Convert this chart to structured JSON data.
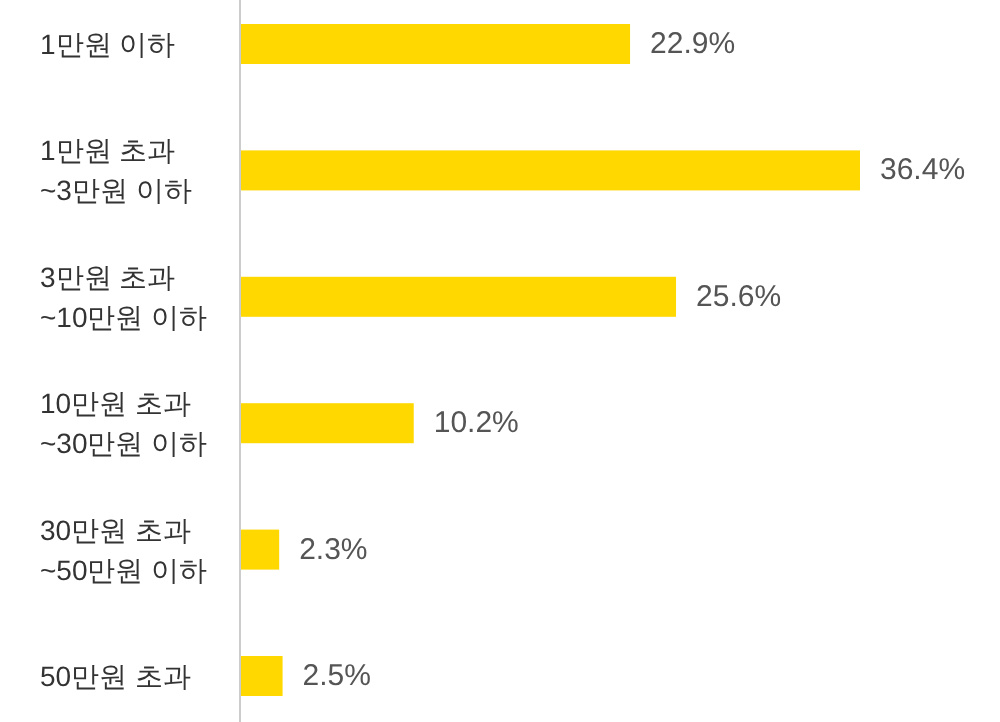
{
  "chart_data": {
    "type": "bar",
    "orientation": "horizontal",
    "categories": [
      "1만원 이하",
      "1만원 초과\n~3만원 이하",
      "3만원 초과\n~10만원 이하",
      "10만원 초과\n~30만원 이하",
      "30만원 초과\n~50만원 이하",
      "50만원 초과"
    ],
    "values": [
      22.9,
      36.4,
      25.6,
      10.2,
      2.3,
      2.5
    ],
    "color": "#ffd800",
    "value_labels": [
      "22.9%",
      "36.4%",
      "25.6%",
      "10.2%",
      "2.3%",
      "2.5%"
    ]
  }
}
